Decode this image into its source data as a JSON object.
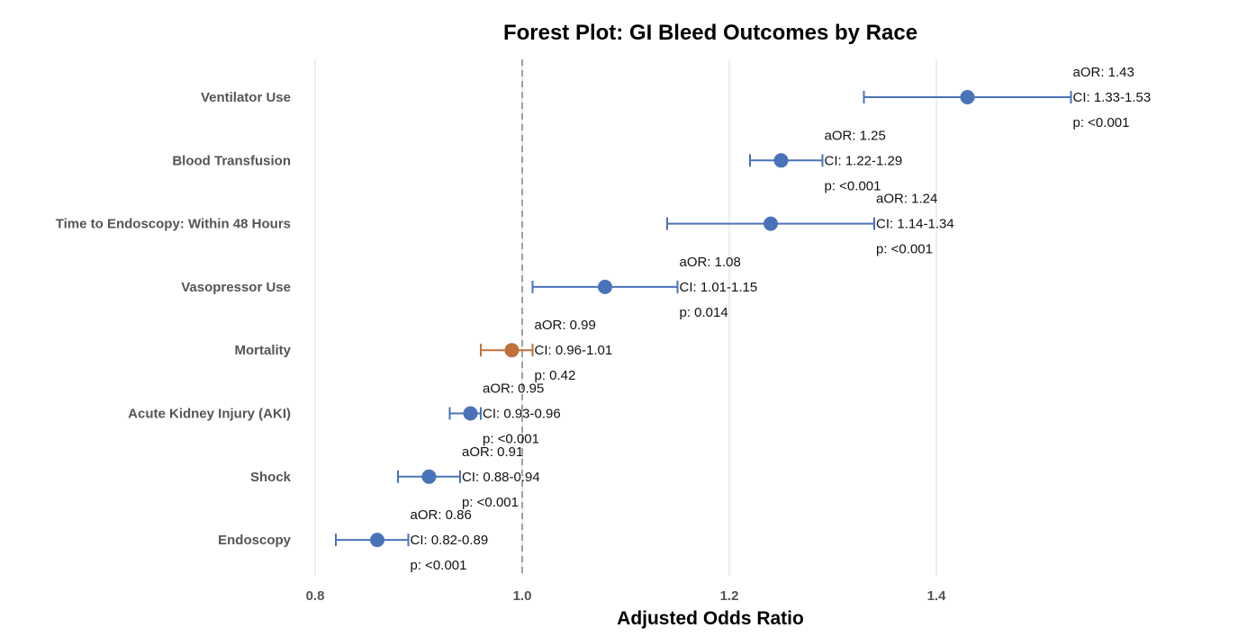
{
  "chart_data": {
    "type": "forest",
    "title": "Forest Plot: GI Bleed Outcomes by Race",
    "xlabel": "Adjusted Odds Ratio",
    "ylabel": "",
    "xlim": [
      0.78,
      1.62
    ],
    "xticks": [
      "0.8",
      "1.0",
      "1.2",
      "1.4"
    ],
    "xtick_values": [
      0.8,
      1.0,
      1.2,
      1.4
    ],
    "reference_line": 1.0,
    "grid": "vertical",
    "colors": {
      "significant": "#4a72b8",
      "nonsignificant": "#c0703a"
    },
    "rows": [
      {
        "label": "Ventilator Use",
        "aor": 1.43,
        "lo": 1.33,
        "hi": 1.53,
        "ann_or": "aOR: 1.43",
        "ann_ci": "CI: 1.33-1.53",
        "ann_p": "p: <0.001",
        "significant": true
      },
      {
        "label": "Blood Transfusion",
        "aor": 1.25,
        "lo": 1.22,
        "hi": 1.29,
        "ann_or": "aOR: 1.25",
        "ann_ci": "CI: 1.22-1.29",
        "ann_p": "p: <0.001",
        "significant": true
      },
      {
        "label": "Time to Endoscopy: Within 48 Hours",
        "aor": 1.24,
        "lo": 1.14,
        "hi": 1.34,
        "ann_or": "aOR: 1.24",
        "ann_ci": "CI: 1.14-1.34",
        "ann_p": "p: <0.001",
        "significant": true
      },
      {
        "label": "Vasopressor Use",
        "aor": 1.08,
        "lo": 1.01,
        "hi": 1.15,
        "ann_or": "aOR: 1.08",
        "ann_ci": "CI: 1.01-1.15",
        "ann_p": "p: 0.014",
        "significant": true
      },
      {
        "label": "Mortality",
        "aor": 0.99,
        "lo": 0.96,
        "hi": 1.01,
        "ann_or": "aOR: 0.99",
        "ann_ci": "CI: 0.96-1.01",
        "ann_p": "p: 0.42",
        "significant": false
      },
      {
        "label": "Acute Kidney Injury (AKI)",
        "aor": 0.95,
        "lo": 0.93,
        "hi": 0.96,
        "ann_or": "aOR: 0.95",
        "ann_ci": "CI: 0.93-0.96",
        "ann_p": "p: <0.001",
        "significant": true
      },
      {
        "label": "Shock",
        "aor": 0.91,
        "lo": 0.88,
        "hi": 0.94,
        "ann_or": "aOR: 0.91",
        "ann_ci": "CI: 0.88-0.94",
        "ann_p": "p: <0.001",
        "significant": true
      },
      {
        "label": "Endoscopy",
        "aor": 0.86,
        "lo": 0.82,
        "hi": 0.89,
        "ann_or": "aOR: 0.86",
        "ann_ci": "CI: 0.82-0.89",
        "ann_p": "p: <0.001",
        "significant": true
      }
    ]
  }
}
